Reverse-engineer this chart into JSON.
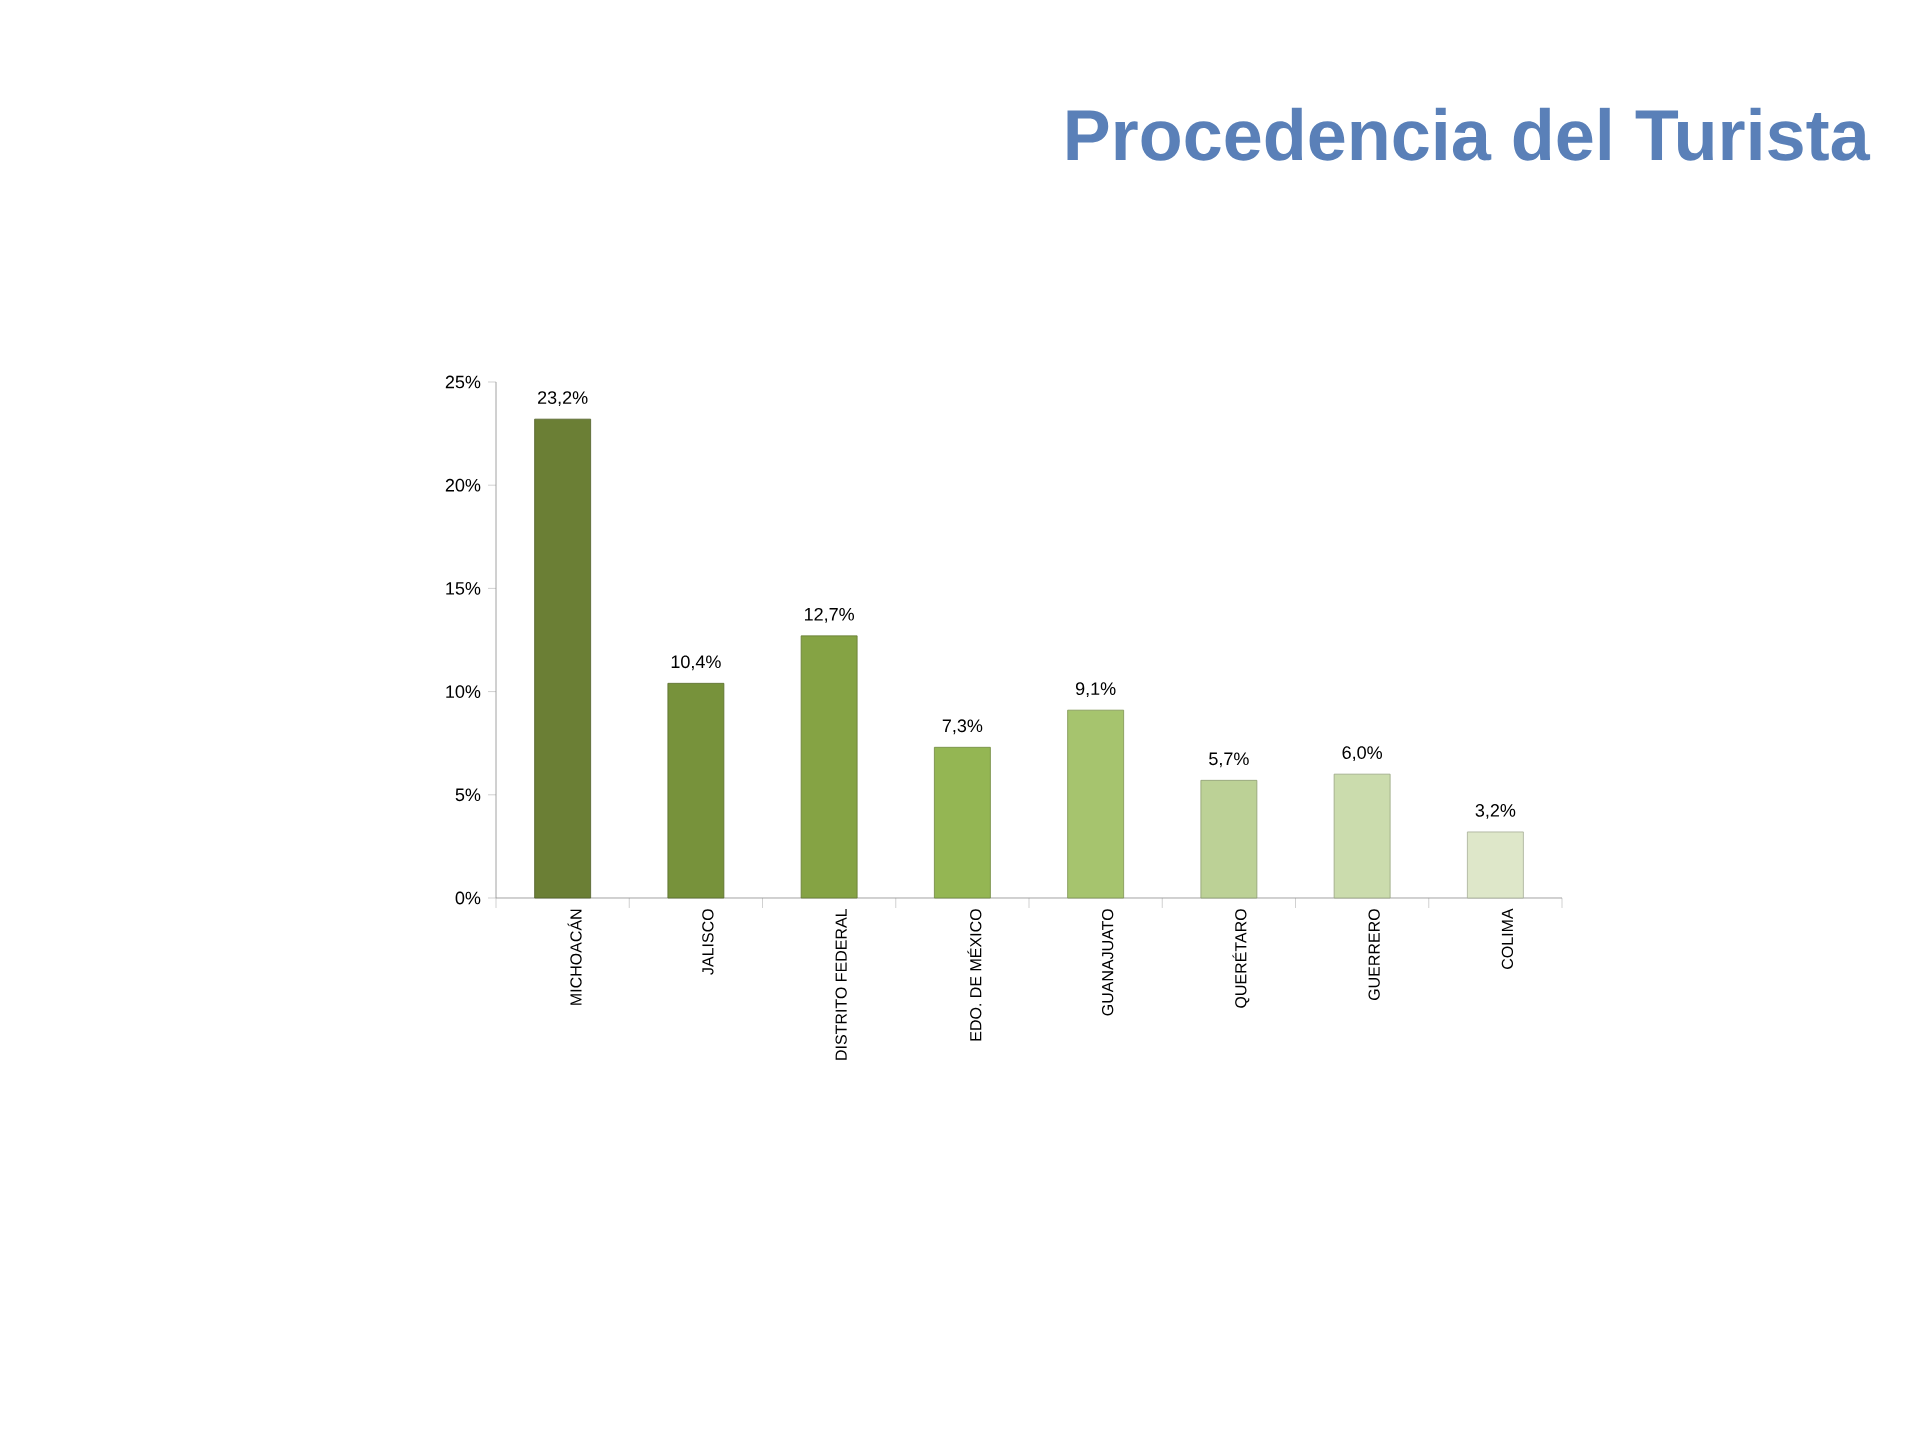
{
  "chart_data": {
    "type": "bar",
    "title": "Procedencia del Turista",
    "categories": [
      "MICHOACÁN",
      "JALISCO",
      "DISTRITO FEDERAL",
      "EDO. DE MÉXICO",
      "GUANAJUATO",
      "QUERÉTARO",
      "GUERRERO",
      "COLIMA"
    ],
    "values": [
      23.2,
      10.4,
      12.7,
      7.3,
      9.1,
      5.7,
      6.0,
      3.2
    ],
    "colors": [
      "#6b7f35",
      "#77923b",
      "#85a344",
      "#94b653",
      "#a6c46e",
      "#bcd196",
      "#cbdcad",
      "#dee7c9"
    ],
    "value_labels": [
      "23,2%",
      "10,4%",
      "12,7%",
      "7,3%",
      "9,1%",
      "5,7%",
      "6,0%",
      "3,2%"
    ],
    "ylim": [
      0,
      25
    ],
    "yticks": [
      {
        "value": 0,
        "label": "0%"
      },
      {
        "value": 5,
        "label": "5%"
      },
      {
        "value": 10,
        "label": "10%"
      },
      {
        "value": 15,
        "label": "15%"
      },
      {
        "value": 20,
        "label": "20%"
      },
      {
        "value": 25,
        "label": "25%"
      }
    ]
  }
}
